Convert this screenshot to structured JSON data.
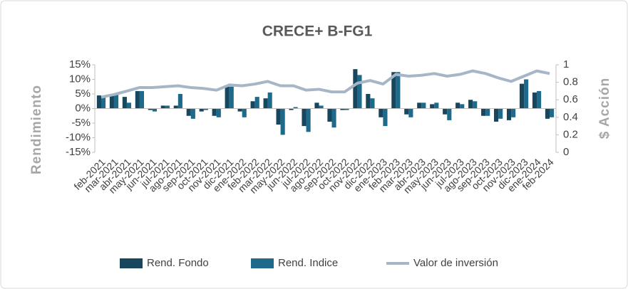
{
  "chart_data": {
    "type": "bar_line",
    "title": "CRECE+ B-FG1",
    "ylabel": "Rendimiento",
    "y2label": "$ Acción",
    "categories": [
      "feb-2021",
      "mar-2021",
      "abr-2021",
      "may-2021",
      "jun-2021",
      "jul-2021",
      "ago-2021",
      "sep-2021",
      "oct-2021",
      "nov-2021",
      "dic-2021",
      "ene-2022",
      "feb-2022",
      "mar-2022",
      "may-2022",
      "jun-2022",
      "jul-2022",
      "ago-2022",
      "sep-2022",
      "oct-2022",
      "nov-2022",
      "dic-2022",
      "ene-2023",
      "feb-2023",
      "mar-2023",
      "abr-2023",
      "may-2023",
      "jun-2023",
      "jul-2023",
      "ago-2023",
      "sep-2023",
      "oct-2023",
      "nov-2023",
      "dic-2023",
      "ene-2024",
      "feb-2024"
    ],
    "series": [
      {
        "name": "Rend. Fondo",
        "color": "#17465d",
        "values": [
          4.5,
          5,
          4,
          6,
          -0.5,
          1,
          1,
          -2.5,
          -1,
          -2.5,
          7.5,
          -1,
          2.5,
          3.5,
          -5.5,
          -0.5,
          -6,
          2,
          -4.5,
          -0.5,
          13.5,
          5,
          -3,
          12.5,
          -2,
          2,
          1.5,
          -2,
          2,
          3,
          -2.5,
          -4.5,
          -4,
          8.5,
          5.5,
          -3.5
        ]
      },
      {
        "name": "Rend. Indice",
        "color": "#1f6a8a",
        "values": [
          4,
          5,
          2,
          6,
          -1,
          1,
          5,
          -3.5,
          -0.5,
          -3,
          7.5,
          -3,
          4,
          5.5,
          -9,
          0.5,
          -8,
          1,
          -6.5,
          -0.5,
          11.5,
          3.5,
          -6,
          12.5,
          -3,
          2,
          2,
          -4,
          1.5,
          2.5,
          -2.5,
          -3.5,
          -3,
          10,
          6,
          -3
        ]
      },
      {
        "name": "Valor de inversión",
        "color": "#a7b6c6",
        "axis": "y2",
        "values": [
          0.63,
          0.66,
          0.7,
          0.74,
          0.74,
          0.75,
          0.76,
          0.74,
          0.73,
          0.71,
          0.77,
          0.76,
          0.78,
          0.81,
          0.76,
          0.76,
          0.71,
          0.72,
          0.69,
          0.69,
          0.79,
          0.82,
          0.78,
          0.89,
          0.87,
          0.88,
          0.9,
          0.87,
          0.89,
          0.93,
          0.9,
          0.85,
          0.81,
          0.87,
          0.93,
          0.9
        ]
      }
    ],
    "ylim": [
      -15,
      15
    ],
    "yticks": [
      {
        "value": -15,
        "label": "-15%"
      },
      {
        "value": -10,
        "label": "-10%"
      },
      {
        "value": -5,
        "label": "-5%"
      },
      {
        "value": 0,
        "label": "0%"
      },
      {
        "value": 5,
        "label": "5%"
      },
      {
        "value": 10,
        "label": "10%"
      },
      {
        "value": 15,
        "label": "15%"
      }
    ],
    "y2lim": [
      0,
      1
    ],
    "y2ticks": [
      0,
      0.2,
      0.4,
      0.6,
      0.8,
      1
    ]
  }
}
